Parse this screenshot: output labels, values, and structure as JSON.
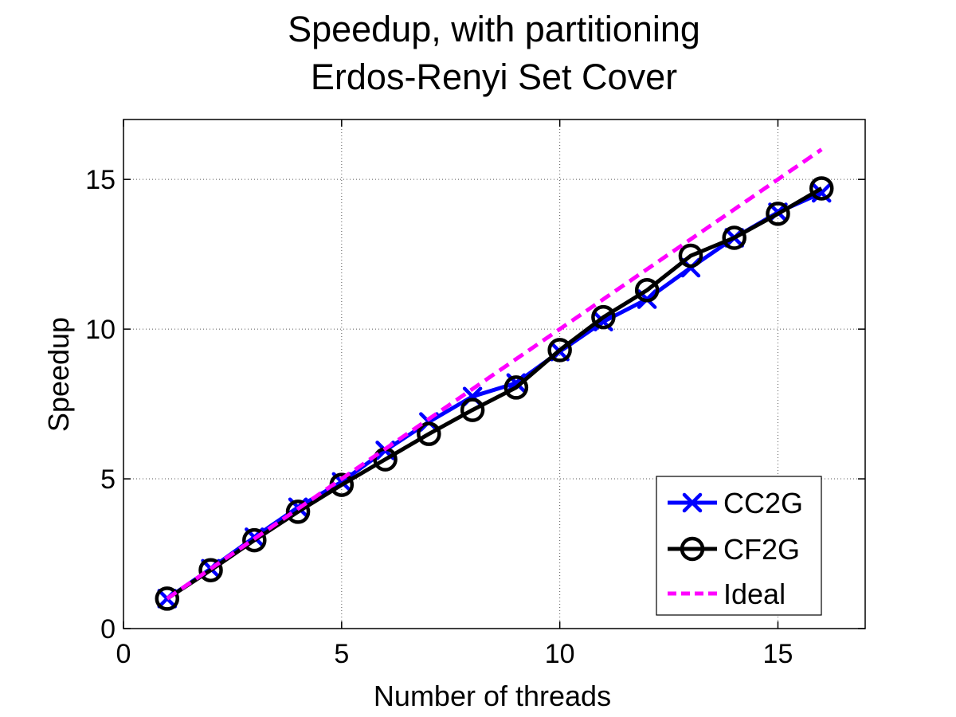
{
  "chart_data": {
    "type": "line",
    "title": "Speedup, with partitioning",
    "subtitle": "Erdos-Renyi Set Cover",
    "xlabel": "Number of threads",
    "ylabel": "Speedup",
    "xlim": [
      0,
      17
    ],
    "ylim": [
      0,
      17
    ],
    "xticks": [
      0,
      5,
      10,
      15
    ],
    "yticks": [
      0,
      5,
      10,
      15
    ],
    "grid": true,
    "legend_position": "bottom-right",
    "series": [
      {
        "name": "CC2G",
        "color": "#0000ff",
        "marker": "x",
        "x": [
          1,
          2,
          3,
          4,
          5,
          6,
          7,
          8,
          9,
          10,
          11,
          12,
          13,
          14,
          15,
          16
        ],
        "y": [
          1.0,
          2.0,
          3.05,
          4.05,
          4.9,
          5.95,
          6.9,
          7.75,
          8.2,
          9.25,
          10.25,
          11.0,
          12.05,
          13.05,
          13.9,
          14.55
        ]
      },
      {
        "name": "CF2G",
        "color": "#000000",
        "marker": "o",
        "x": [
          1,
          2,
          3,
          4,
          5,
          6,
          7,
          8,
          9,
          10,
          11,
          12,
          13,
          14,
          15,
          16
        ],
        "y": [
          1.0,
          1.95,
          2.95,
          3.9,
          4.8,
          5.65,
          6.5,
          7.3,
          8.05,
          9.3,
          10.4,
          11.3,
          12.45,
          13.05,
          13.85,
          14.7
        ]
      },
      {
        "name": "Ideal",
        "color": "#ff00ff",
        "marker": "none",
        "dashed": true,
        "x": [
          1,
          16
        ],
        "y": [
          1,
          16
        ]
      }
    ]
  }
}
